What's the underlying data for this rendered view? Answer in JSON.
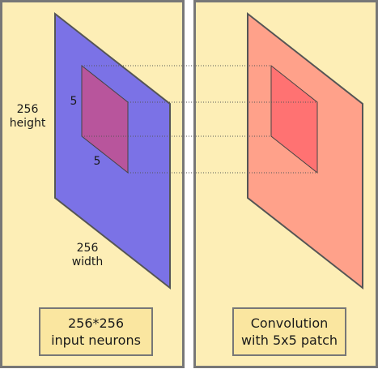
{
  "left_panel": {
    "height_value": "256",
    "height_label": "height",
    "width_value": "256",
    "width_label": "width",
    "patch_side_label": "5",
    "patch_bottom_label": "5",
    "caption_line1": "256*256",
    "caption_line2": "input neurons"
  },
  "right_panel": {
    "caption_line1": "Convolution",
    "caption_line2": "with 5x5 patch"
  },
  "colors": {
    "panel_background": "#fdeeb6",
    "panel_border": "#777777",
    "input_layer": "#7b72e6",
    "input_patch": "#b8559c",
    "output_layer": "#ffa18a",
    "output_patch": "#ff7272",
    "caption_background": "#fae6a0"
  }
}
